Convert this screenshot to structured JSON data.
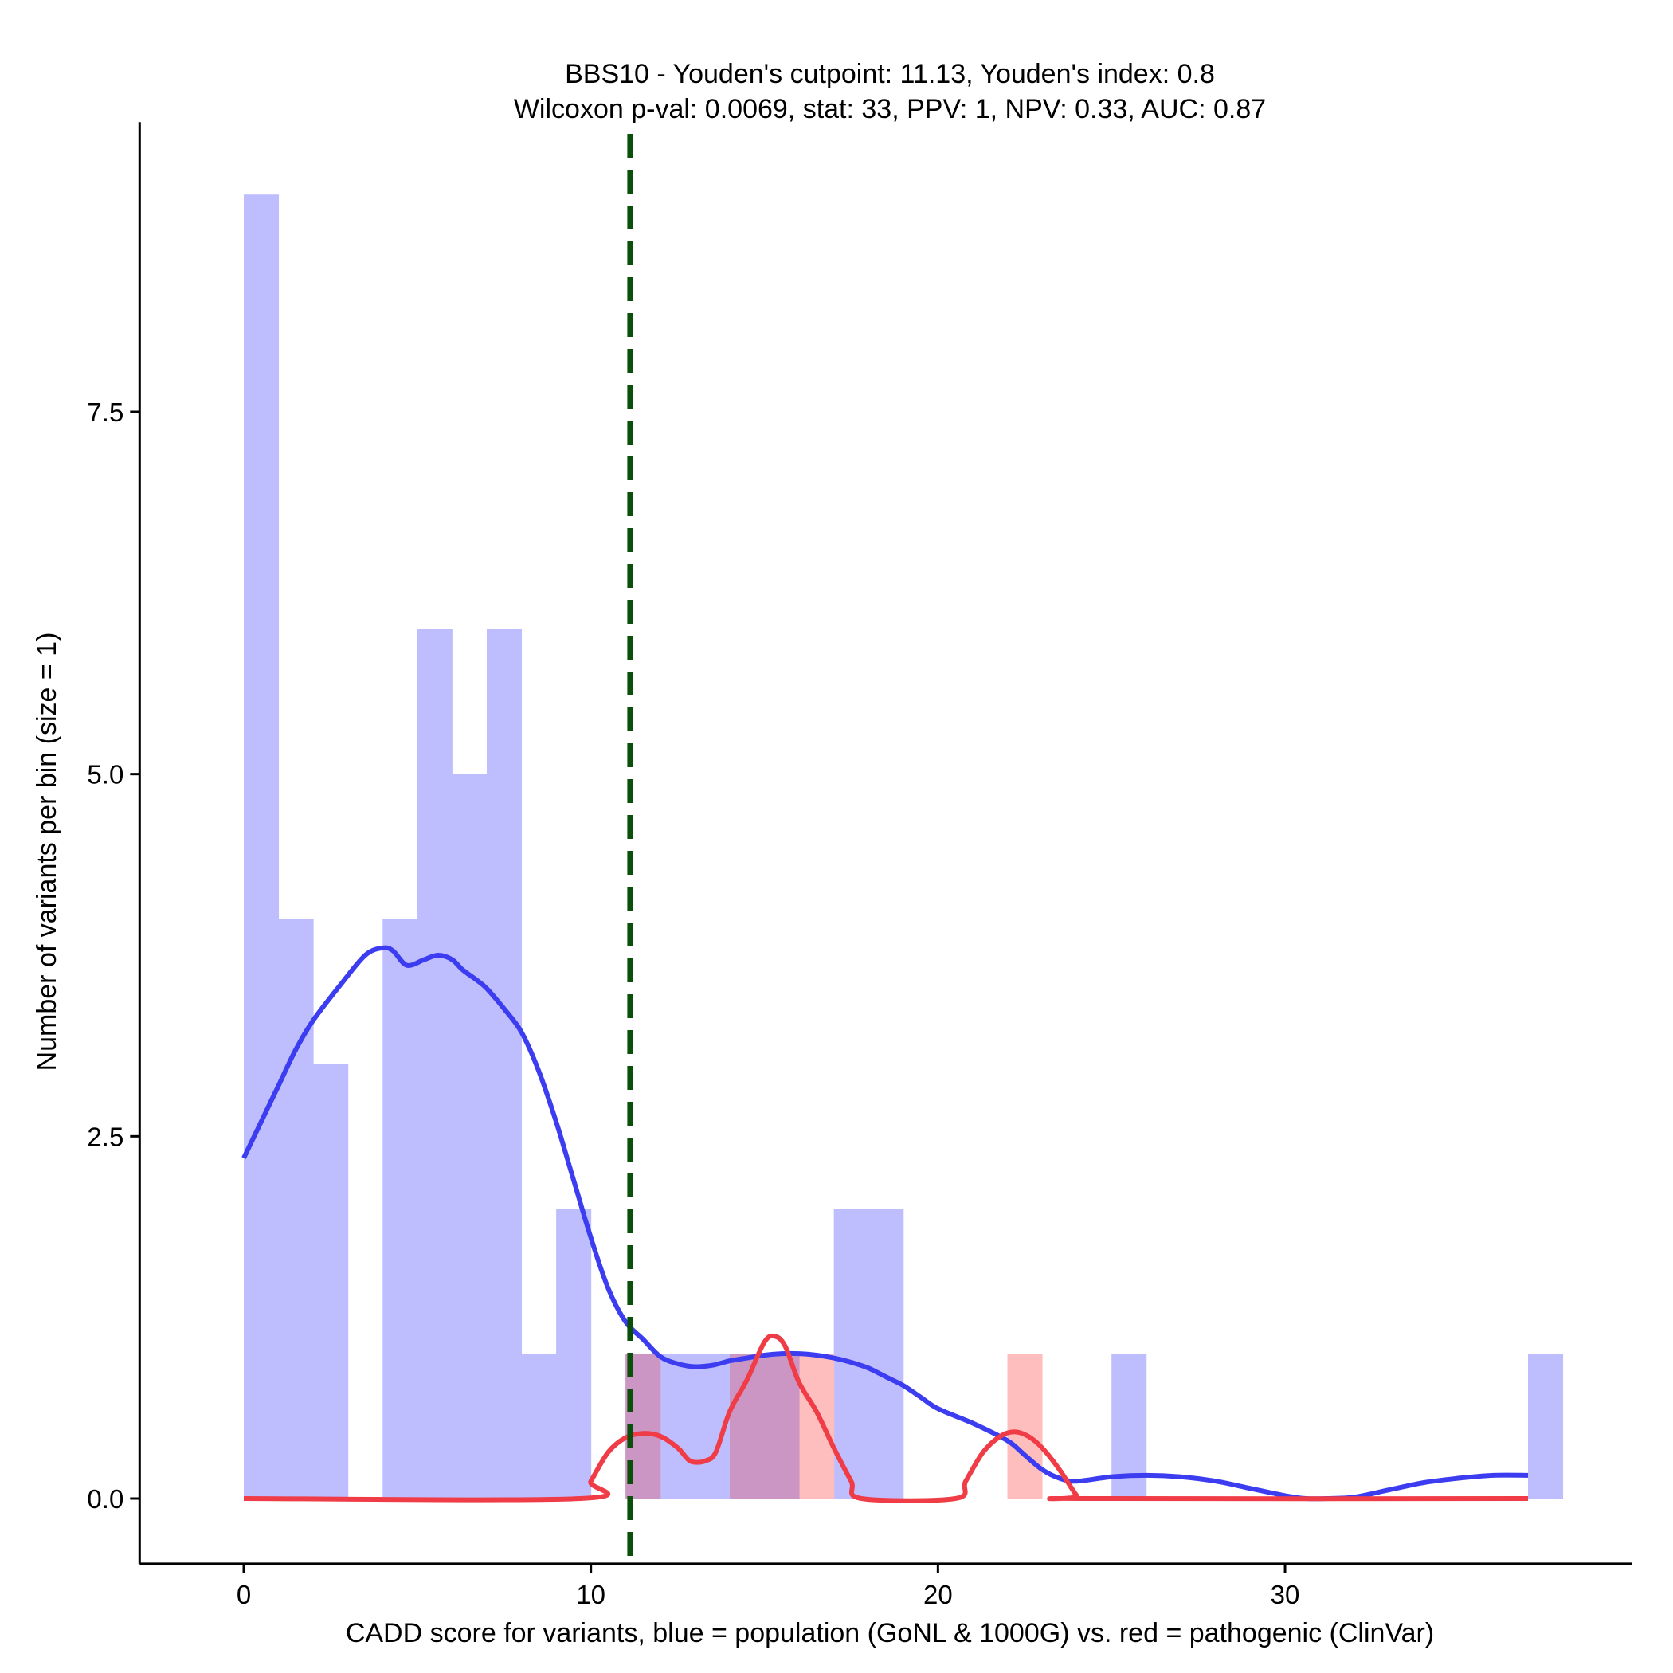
{
  "chart_data": {
    "type": "histogram",
    "title": "BBS10 - Youden's cutpoint: 11.13, Youden's index: 0.8",
    "subtitle": "Wilcoxon p-val: 0.0069, stat: 33, PPV: 1, NPV: 0.33, AUC: 0.87",
    "xlabel": "CADD score for variants, blue = population (GoNL & 1000G) vs. red = pathogenic (ClinVar)",
    "ylabel": "Number of variants per bin (size = 1)",
    "xlim": [
      -3,
      40
    ],
    "ylim": [
      -0.45,
      9.5
    ],
    "xticks": [
      0,
      10,
      20,
      30
    ],
    "xtick_labels": [
      "0",
      "10",
      "20",
      "30"
    ],
    "yticks": [
      0,
      2.5,
      5,
      7.5
    ],
    "ytick_labels": [
      "0.0",
      "2.5",
      "5.0",
      "7.5"
    ],
    "bin_size": 1,
    "cutpoint": 11.13,
    "colors": {
      "population_bar": "#bebeff",
      "pathogenic_bar": "#ffbebe",
      "overlap_bar": "#cc96c4",
      "population_density": "#3c3cf0",
      "pathogenic_density": "#f03c46",
      "cutpoint_line": "#0a500a",
      "axis": "#000000"
    },
    "series": [
      {
        "name": "population (GoNL & 1000G)",
        "bins": [
          {
            "start": 0,
            "count": 9
          },
          {
            "start": 1,
            "count": 4
          },
          {
            "start": 2,
            "count": 3
          },
          {
            "start": 4,
            "count": 4
          },
          {
            "start": 5,
            "count": 6
          },
          {
            "start": 6,
            "count": 5
          },
          {
            "start": 7,
            "count": 6
          },
          {
            "start": 8,
            "count": 1
          },
          {
            "start": 9,
            "count": 2
          },
          {
            "start": 11,
            "count": 1
          },
          {
            "start": 12,
            "count": 1
          },
          {
            "start": 13,
            "count": 1
          },
          {
            "start": 14,
            "count": 1
          },
          {
            "start": 15,
            "count": 1
          },
          {
            "start": 17,
            "count": 2
          },
          {
            "start": 18,
            "count": 2
          },
          {
            "start": 25,
            "count": 1
          },
          {
            "start": 37,
            "count": 1
          }
        ],
        "density": [
          [
            0,
            2.35
          ],
          [
            0.5,
            2.6
          ],
          [
            1,
            2.85
          ],
          [
            1.5,
            3.1
          ],
          [
            2,
            3.3
          ],
          [
            2.8,
            3.55
          ],
          [
            3.5,
            3.75
          ],
          [
            4,
            3.8
          ],
          [
            4.3,
            3.78
          ],
          [
            4.7,
            3.68
          ],
          [
            5.2,
            3.72
          ],
          [
            5.6,
            3.75
          ],
          [
            6,
            3.72
          ],
          [
            6.3,
            3.65
          ],
          [
            6.7,
            3.58
          ],
          [
            7,
            3.52
          ],
          [
            7.5,
            3.38
          ],
          [
            8,
            3.22
          ],
          [
            8.5,
            2.95
          ],
          [
            9,
            2.6
          ],
          [
            9.5,
            2.2
          ],
          [
            10,
            1.8
          ],
          [
            10.5,
            1.45
          ],
          [
            11,
            1.22
          ],
          [
            11.5,
            1.1
          ],
          [
            12,
            0.98
          ],
          [
            12.5,
            0.93
          ],
          [
            13,
            0.91
          ],
          [
            13.5,
            0.92
          ],
          [
            14,
            0.95
          ],
          [
            14.5,
            0.97
          ],
          [
            15,
            0.99
          ],
          [
            15.5,
            1.0
          ],
          [
            16,
            1.0
          ],
          [
            16.5,
            0.99
          ],
          [
            17,
            0.97
          ],
          [
            17.5,
            0.94
          ],
          [
            18,
            0.9
          ],
          [
            18.5,
            0.84
          ],
          [
            19,
            0.78
          ],
          [
            19.5,
            0.7
          ],
          [
            20,
            0.62
          ],
          [
            21,
            0.52
          ],
          [
            22,
            0.4
          ],
          [
            22.5,
            0.3
          ],
          [
            23,
            0.2
          ],
          [
            23.5,
            0.14
          ],
          [
            24,
            0.12
          ],
          [
            25,
            0.15
          ],
          [
            26,
            0.16
          ],
          [
            27,
            0.15
          ],
          [
            28,
            0.12
          ],
          [
            29,
            0.07
          ],
          [
            30,
            0.02
          ],
          [
            30.6,
            0.0
          ],
          [
            31.2,
            0.0
          ],
          [
            32,
            0.01
          ],
          [
            33,
            0.06
          ],
          [
            34,
            0.11
          ],
          [
            35,
            0.14
          ],
          [
            36,
            0.16
          ],
          [
            37,
            0.16
          ]
        ]
      },
      {
        "name": "pathogenic (ClinVar)",
        "bins": [
          {
            "start": 11,
            "count": 1
          },
          {
            "start": 14,
            "count": 1
          },
          {
            "start": 15,
            "count": 1
          },
          {
            "start": 16,
            "count": 1
          },
          {
            "start": 22,
            "count": 1
          }
        ],
        "density": [
          [
            0,
            0
          ],
          [
            9.7,
            0
          ],
          [
            10,
            0.12
          ],
          [
            10.5,
            0.32
          ],
          [
            11,
            0.42
          ],
          [
            11.5,
            0.45
          ],
          [
            12,
            0.43
          ],
          [
            12.5,
            0.35
          ],
          [
            12.8,
            0.27
          ],
          [
            13,
            0.25
          ],
          [
            13.3,
            0.26
          ],
          [
            13.6,
            0.32
          ],
          [
            14,
            0.6
          ],
          [
            14.5,
            0.82
          ],
          [
            15,
            1.08
          ],
          [
            15.3,
            1.12
          ],
          [
            15.6,
            1.05
          ],
          [
            16,
            0.8
          ],
          [
            16.5,
            0.6
          ],
          [
            17,
            0.35
          ],
          [
            17.5,
            0.12
          ],
          [
            17.8,
            0
          ],
          [
            20.5,
            0
          ],
          [
            20.8,
            0.12
          ],
          [
            21.3,
            0.32
          ],
          [
            21.8,
            0.43
          ],
          [
            22.2,
            0.46
          ],
          [
            22.6,
            0.43
          ],
          [
            23,
            0.35
          ],
          [
            23.5,
            0.2
          ],
          [
            24,
            0.02
          ],
          [
            24.2,
            0
          ],
          [
            37,
            0
          ]
        ]
      }
    ]
  }
}
